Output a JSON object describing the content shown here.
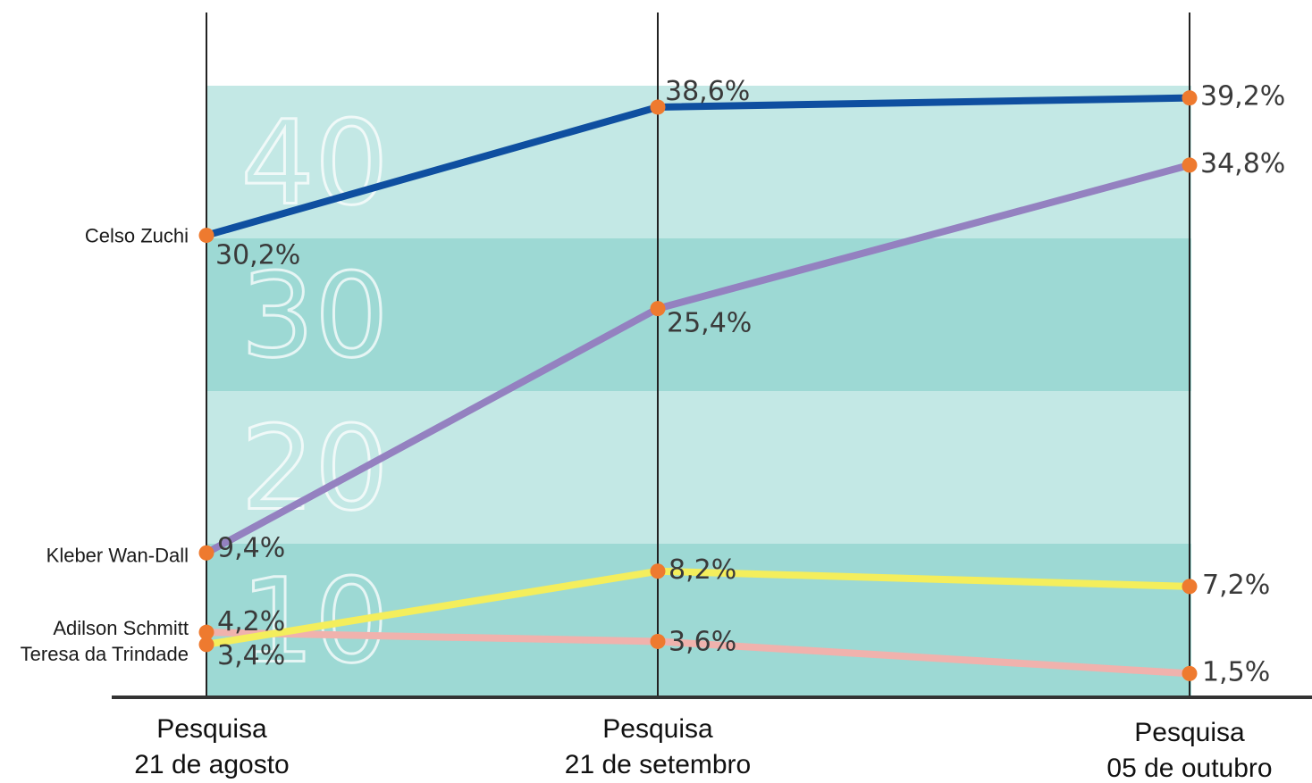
{
  "chart_data": {
    "type": "line",
    "categories": [
      {
        "line1": "Pesquisa",
        "line2": "21 de agosto"
      },
      {
        "line1": "Pesquisa",
        "line2": "21 de setembro"
      },
      {
        "line1": "Pesquisa",
        "line2": "05 de outubro"
      }
    ],
    "ylim": [
      0,
      45
    ],
    "bands": [
      {
        "label": "10",
        "from": 0,
        "to": 10,
        "color": "#9dd9d4"
      },
      {
        "label": "20",
        "from": 10,
        "to": 20,
        "color": "#c3e8e5"
      },
      {
        "label": "30",
        "from": 20,
        "to": 30,
        "color": "#9dd9d4"
      },
      {
        "label": "40",
        "from": 30,
        "to": 40,
        "color": "#c3e8e5"
      }
    ],
    "series": [
      {
        "name": "Celso Zuchi",
        "color": "#0f4fa0",
        "values": [
          30.2,
          38.6,
          39.2
        ],
        "labels": [
          "30,2%",
          "38,6%",
          "39,2%"
        ]
      },
      {
        "name": "Kleber Wan-Dall",
        "color": "#9481c0",
        "values": [
          9.4,
          25.4,
          34.8
        ],
        "labels": [
          "9,4%",
          "25,4%",
          "34,8%"
        ]
      },
      {
        "name": "Teresa da Trindade",
        "color": "#f4ee5c",
        "values": [
          3.4,
          8.2,
          7.2
        ],
        "labels": [
          "3,4%",
          "8,2%",
          "7,2%"
        ]
      },
      {
        "name": "Adilson Schmitt",
        "color": "#f0b2ad",
        "values": [
          4.2,
          3.6,
          1.5
        ],
        "labels": [
          "4,2%",
          "3,6%",
          "1,5%"
        ]
      }
    ],
    "marker_color": "#ee7a2f",
    "grid": false
  }
}
